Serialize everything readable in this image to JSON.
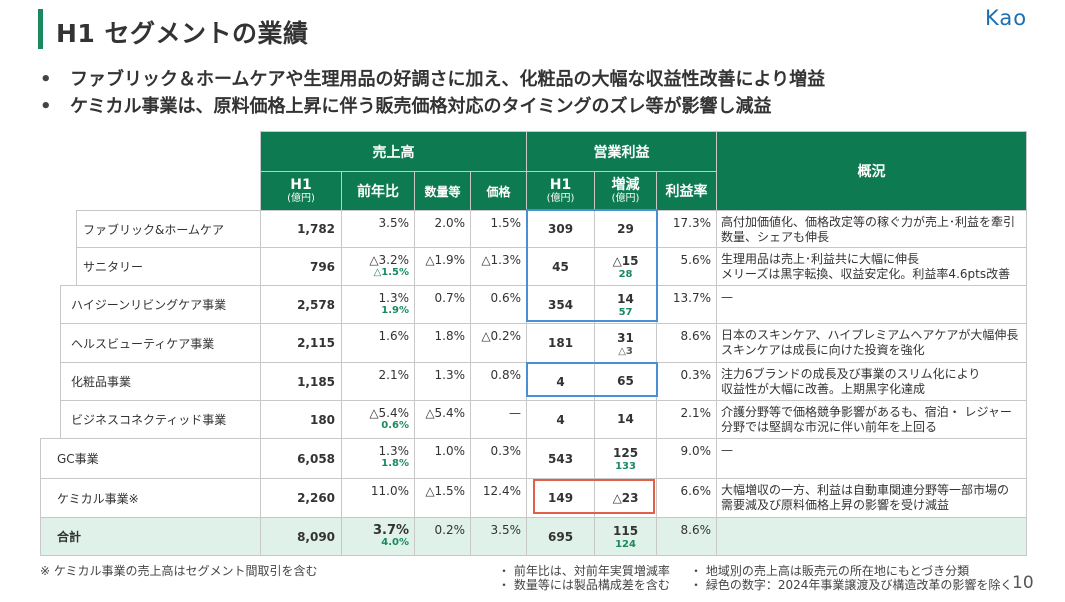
{
  "header": {
    "title": "H1 セグメントの業績",
    "logo_text": "Kao"
  },
  "bullets": [
    "ファブリック＆ホームケアや生理用品の好調さに加え、化粧品の大幅な収益性改善により増益",
    "ケミカル事業は、原料価格上昇に伴う販売価格対応のタイミングのズレ等が影響し減益"
  ],
  "bullet_mark": "•",
  "table": {
    "group_sales": "売上高",
    "group_op": "営業利益",
    "col_h1": "H1",
    "col_unit": "(億円)",
    "col_yoy": "前年比",
    "col_volume": "数量等",
    "col_price": "価格",
    "col_change": "増減",
    "col_margin": "利益率",
    "col_overview": "概況",
    "rows": [
      {
        "name": "ファブリック&ホームケア",
        "sales": "1,782",
        "yoy": "3.5%",
        "yoy_adj": "",
        "volume": "2.0%",
        "price": "1.5%",
        "op": "309",
        "op_change": "29",
        "op_change_adj": "",
        "op_change_sub": "",
        "margin": "17.3%",
        "overview": "高付加価値化、価格改定等の稼ぐ力が売上･利益を牽引\n数量、シェアも伸長"
      },
      {
        "name": "サニタリー",
        "sales": "796",
        "yoy": "△3.2%",
        "yoy_adj": "△1.5%",
        "volume": "△1.9%",
        "price": "△1.3%",
        "op": "45",
        "op_change": "△15",
        "op_change_adj": "28",
        "op_change_sub": "",
        "margin": "5.6%",
        "overview": "生理用品は売上･利益共に大幅に伸長\nメリーズは黒字転換、収益安定化。利益率4.6pts改善"
      },
      {
        "name": "ハイジーンリビングケア事業",
        "sales": "2,578",
        "yoy": "1.3%",
        "yoy_adj": "1.9%",
        "volume": "0.7%",
        "price": "0.6%",
        "op": "354",
        "op_change": "14",
        "op_change_adj": "57",
        "op_change_sub": "",
        "margin": "13.7%",
        "overview": "—"
      },
      {
        "name": "ヘルスビューティケア事業",
        "sales": "2,115",
        "yoy": "1.6%",
        "yoy_adj": "",
        "volume": "1.8%",
        "price": "△0.2%",
        "op": "181",
        "op_change": "31",
        "op_change_adj": "",
        "op_change_sub": "△3",
        "margin": "8.6%",
        "overview": "日本のスキンケア、ハイプレミアムヘアケアが大幅伸長\nスキンケアは成長に向けた投資を強化"
      },
      {
        "name": "化粧品事業",
        "sales": "1,185",
        "yoy": "2.1%",
        "yoy_adj": "",
        "volume": "1.3%",
        "price": "0.8%",
        "op": "4",
        "op_change": "65",
        "op_change_adj": "",
        "op_change_sub": "",
        "margin": "0.3%",
        "overview": "注力6ブランドの成長及び事業のスリム化により\n収益性が大幅に改善。上期黒字化達成"
      },
      {
        "name": "ビジネスコネクティッド事業",
        "sales": "180",
        "yoy": "△5.4%",
        "yoy_adj": "0.6%",
        "volume": "△5.4%",
        "price": "—",
        "op": "4",
        "op_change": "14",
        "op_change_adj": "",
        "op_change_sub": "",
        "margin": "2.1%",
        "overview": "介護分野等で価格競争影響があるも、宿泊・ レジャー\n分野では堅調な市況に伴い前年を上回る"
      },
      {
        "name": "GC事業",
        "sales": "6,058",
        "yoy": "1.3%",
        "yoy_adj": "1.8%",
        "volume": "1.0%",
        "price": "0.3%",
        "op": "543",
        "op_change": "125",
        "op_change_adj": "133",
        "op_change_sub": "",
        "margin": "9.0%",
        "overview": "—"
      },
      {
        "name": "ケミカル事業※",
        "sales": "2,260",
        "yoy": "11.0%",
        "yoy_adj": "",
        "volume": "△1.5%",
        "price": "12.4%",
        "op": "149",
        "op_change": "△23",
        "op_change_adj": "",
        "op_change_sub": "",
        "margin": "6.6%",
        "overview": "大幅増収の一方、利益は自動車関連分野等一部市場の\n需要減及び原料価格上昇の影響を受け減益"
      },
      {
        "name": "合計",
        "sales": "8,090",
        "yoy": "3.7%",
        "yoy_adj": "4.0%",
        "volume": "0.2%",
        "price": "3.5%",
        "op": "695",
        "op_change": "115",
        "op_change_adj": "124",
        "op_change_sub": "",
        "margin": "8.6%",
        "overview": ""
      }
    ]
  },
  "footnotes": {
    "left": "※ ケミカル事業の売上高はセグメント間取引を含む",
    "mid1": "・ 前年比は、対前年実質増減率",
    "mid2": "・ 数量等には製品構成差を含む",
    "right1": "・ 地域別の売上高は販売元の所在地にもとづき分類",
    "right2": "・ 緑色の数字：2024年事業譲渡及び構造改革の影響を除く",
    "page_number": "10"
  },
  "colors": {
    "header_green": "#0d7a52",
    "highlight_blue": "#4a8fd6",
    "highlight_red": "#e0604a",
    "adjusted_green": "#1a8a5e"
  }
}
